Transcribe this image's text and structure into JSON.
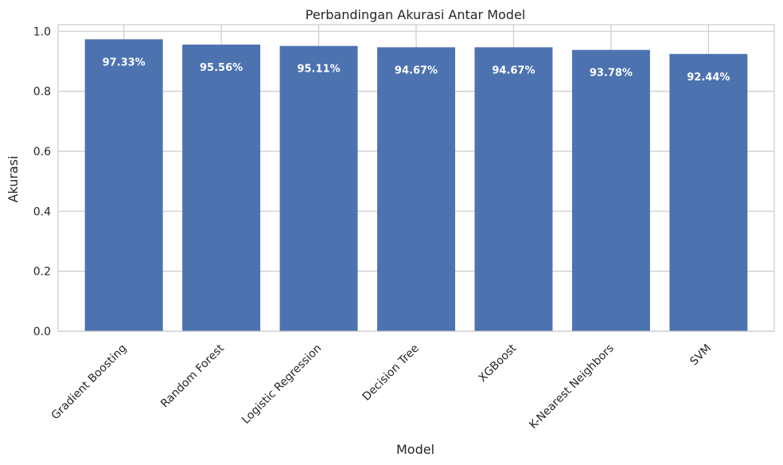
{
  "chart_data": {
    "type": "bar",
    "title": "Perbandingan Akurasi Antar Model",
    "xlabel": "Model",
    "ylabel": "Akurasi",
    "categories": [
      "Gradient Boosting",
      "Random Forest",
      "Logistic Regression",
      "Decision Tree",
      "XGBoost",
      "K-Nearest Neighbors",
      "SVM"
    ],
    "values": [
      0.9733,
      0.9556,
      0.9511,
      0.9467,
      0.9467,
      0.9378,
      0.9244
    ],
    "value_labels": [
      "97.33%",
      "95.56%",
      "95.11%",
      "94.67%",
      "94.67%",
      "93.78%",
      "92.44%"
    ],
    "yticks": [
      0.0,
      0.2,
      0.4,
      0.6,
      0.8,
      1.0
    ],
    "ytick_labels": [
      "0.0",
      "0.2",
      "0.4",
      "0.6",
      "0.8",
      "1.0"
    ],
    "ylim": [
      0,
      1.022
    ],
    "grid": true,
    "bar_color": "#4c72b0",
    "grid_color": "#cccccc"
  }
}
